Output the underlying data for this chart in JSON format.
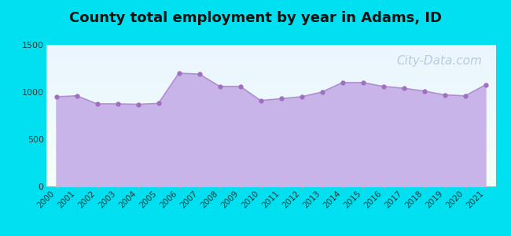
{
  "title": "County total employment by year in Adams, ID",
  "title_fontsize": 13,
  "title_fontweight": "bold",
  "title_color": "#111111",
  "years": [
    2000,
    2001,
    2002,
    2003,
    2004,
    2005,
    2006,
    2007,
    2008,
    2009,
    2010,
    2011,
    2012,
    2013,
    2014,
    2015,
    2016,
    2017,
    2018,
    2019,
    2020,
    2021
  ],
  "employment": [
    950,
    960,
    875,
    875,
    870,
    880,
    1200,
    1190,
    1060,
    1060,
    910,
    930,
    950,
    1000,
    1100,
    1100,
    1060,
    1040,
    1010,
    970,
    960,
    1075
  ],
  "ylim": [
    0,
    1500
  ],
  "yticks": [
    0,
    500,
    1000,
    1500
  ],
  "background_outer": "#00e0f0",
  "background_inner_top": "#f5fff8",
  "background_inner_bottom": "#eaf0ff",
  "fill_color": "#c8b4e8",
  "fill_alpha": 1.0,
  "line_color": "#b090d0",
  "marker_color": "#a070c0",
  "marker_size": 3.5,
  "line_width": 1.2,
  "watermark_text": "City-Data.com",
  "watermark_color": "#a8c0d0",
  "watermark_fontsize": 11,
  "xlabel_fontsize": 7.5,
  "ylabel_fontsize": 8,
  "tick_label_color": "#333333"
}
